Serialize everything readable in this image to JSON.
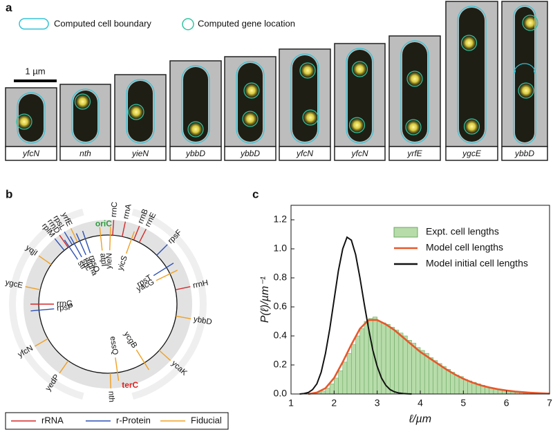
{
  "panel_a": {
    "label": "a",
    "legend": [
      "Computed cell boundary",
      "Computed gene location"
    ],
    "scale_bar": "1 µm",
    "cells": [
      "yfcN",
      "nth",
      "yieN",
      "ybbD",
      "ybbD",
      "yfcN",
      "yfcN",
      "yrfE",
      "ygcE",
      "ybbD"
    ]
  },
  "panel_b": {
    "label": "b",
    "origin": "oriC",
    "terminus": "terC",
    "legend": [
      {
        "name": "rRNA",
        "color": "#d62728"
      },
      {
        "name": "r-Protein",
        "color": "#2b4fb5"
      },
      {
        "name": "Fiducial",
        "color": "#f0a020"
      }
    ],
    "genes": [
      {
        "name": "rrnC",
        "kind": "rRNA"
      },
      {
        "name": "rrnA",
        "kind": "rRNA"
      },
      {
        "name": "rrnB",
        "kind": "rRNA"
      },
      {
        "name": "rrnE",
        "kind": "rRNA"
      },
      {
        "name": "rpsF",
        "kind": "r-Protein"
      },
      {
        "name": "rrnH",
        "kind": "rRNA"
      },
      {
        "name": "ybbD",
        "kind": "Fiducial"
      },
      {
        "name": "ycaK",
        "kind": "Fiducial"
      },
      {
        "name": "nth",
        "kind": "Fiducial"
      },
      {
        "name": "yedP",
        "kind": "Fiducial"
      },
      {
        "name": "yfcN",
        "kind": "Fiducial"
      },
      {
        "name": "ygcE",
        "kind": "Fiducial"
      },
      {
        "name": "yqjI",
        "kind": "Fiducial"
      },
      {
        "name": "rplM",
        "kind": "r-Protein"
      },
      {
        "name": "rrnD",
        "kind": "rRNA"
      },
      {
        "name": "rpsL",
        "kind": "r-Protein"
      },
      {
        "name": "yrfE",
        "kind": "Fiducial"
      },
      {
        "name": "atpI",
        "kind": "Fiducial"
      },
      {
        "name": "yieN",
        "kind": "Fiducial"
      },
      {
        "name": "yicS",
        "kind": "Fiducial"
      },
      {
        "name": "rpsT",
        "kind": "r-Protein"
      },
      {
        "name": "yacG",
        "kind": "Fiducial"
      },
      {
        "name": "ycgB",
        "kind": "Fiducial"
      },
      {
        "name": "essQ",
        "kind": "Fiducial"
      },
      {
        "name": "rpsP",
        "kind": "r-Protein"
      },
      {
        "name": "rrnG",
        "kind": "rRNA"
      },
      {
        "name": "str",
        "kind": "r-Protein"
      },
      {
        "name": "spc",
        "kind": "r-Protein"
      },
      {
        "name": "alpha",
        "kind": "r-Protein"
      },
      {
        "name": "rpsO",
        "kind": "r-Protein"
      }
    ]
  },
  "panel_c_label": "c",
  "chart_data": {
    "type": "histogram",
    "xlabel": "ℓ/µm",
    "ylabel": "P(ℓ)/µm⁻¹",
    "xlim": [
      1,
      7
    ],
    "ylim": [
      0,
      1.3
    ],
    "xticks": [
      1,
      2,
      3,
      4,
      5,
      6,
      7
    ],
    "yticks": [
      {
        "value": 0,
        "label": "0.0"
      },
      0.2,
      0.4,
      0.6,
      0.8,
      {
        "value": 1,
        "label": "1.0"
      },
      1.2
    ],
    "name": "Expt. cell lengths",
    "color": "#b7dcaa",
    "bins": [
      1.6,
      1.7,
      1.8,
      1.9,
      2.0,
      2.1,
      2.2,
      2.3,
      2.4,
      2.5,
      2.6,
      2.7,
      2.8,
      2.9,
      3.0,
      3.1,
      3.2,
      3.3,
      3.4,
      3.5,
      3.6,
      3.7,
      3.8,
      3.9,
      4.0,
      4.1,
      4.2,
      4.3,
      4.4,
      4.5,
      4.6,
      4.7,
      4.8,
      4.9,
      5.0,
      5.1,
      5.2,
      5.3,
      5.4,
      5.5,
      5.6,
      5.7,
      5.8,
      5.9,
      6.0,
      6.1,
      6.2,
      6.3,
      6.4,
      6.5
    ],
    "values": [
      0.01,
      0.02,
      0.04,
      0.07,
      0.11,
      0.16,
      0.22,
      0.28,
      0.34,
      0.4,
      0.45,
      0.5,
      0.52,
      0.53,
      0.5,
      0.49,
      0.48,
      0.46,
      0.44,
      0.42,
      0.4,
      0.37,
      0.35,
      0.32,
      0.3,
      0.28,
      0.25,
      0.23,
      0.21,
      0.19,
      0.17,
      0.15,
      0.13,
      0.12,
      0.1,
      0.09,
      0.08,
      0.07,
      0.06,
      0.05,
      0.04,
      0.035,
      0.03,
      0.025,
      0.02,
      0.015,
      0.01,
      0.008,
      0.005
    ],
    "lines": [
      {
        "name": "Model cell lengths",
        "color": "#e8572a",
        "x": [
          1.4,
          1.6,
          1.8,
          2.0,
          2.2,
          2.4,
          2.6,
          2.8,
          3.0,
          3.2,
          3.4,
          3.6,
          3.8,
          4.0,
          4.2,
          4.4,
          4.6,
          4.8,
          5.0,
          5.2,
          5.4,
          5.6,
          5.8,
          6.0,
          6.2,
          6.4,
          6.6,
          6.8,
          7.0
        ],
        "values": [
          0,
          0.01,
          0.04,
          0.11,
          0.22,
          0.34,
          0.45,
          0.51,
          0.51,
          0.48,
          0.44,
          0.39,
          0.34,
          0.29,
          0.25,
          0.21,
          0.17,
          0.135,
          0.105,
          0.08,
          0.06,
          0.045,
          0.033,
          0.024,
          0.017,
          0.012,
          0.008,
          0.005,
          0.003
        ]
      },
      {
        "name": "Model initial cell lengths",
        "color": "#111111",
        "x": [
          1.2,
          1.3,
          1.4,
          1.5,
          1.6,
          1.7,
          1.8,
          1.9,
          2.0,
          2.1,
          2.2,
          2.3,
          2.4,
          2.5,
          2.6,
          2.7,
          2.8,
          2.9,
          3.0,
          3.1,
          3.2,
          3.3,
          3.4,
          3.5,
          3.6,
          3.7,
          3.8
        ],
        "values": [
          0,
          0.003,
          0.01,
          0.03,
          0.07,
          0.15,
          0.28,
          0.45,
          0.65,
          0.85,
          1.0,
          1.08,
          1.06,
          0.96,
          0.8,
          0.62,
          0.45,
          0.3,
          0.19,
          0.11,
          0.06,
          0.03,
          0.015,
          0.007,
          0.003,
          0.001,
          0
        ]
      }
    ]
  }
}
